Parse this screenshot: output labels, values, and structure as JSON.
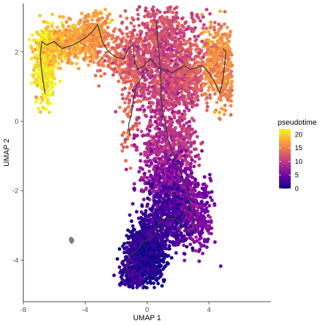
{
  "chart_data": {
    "type": "scatter",
    "title": "",
    "xlabel": "UMAP 1",
    "ylabel": "UMAP 2",
    "xlim": [
      -8,
      8
    ],
    "ylim": [
      -5.2,
      3.4
    ],
    "x_ticks": [
      -8,
      -4,
      0,
      4
    ],
    "x_tick_labels": [
      "-8",
      "-4",
      "0",
      "4"
    ],
    "y_ticks": [
      -4,
      -2,
      0,
      2
    ],
    "y_tick_labels": [
      "-4",
      "-2",
      "0",
      "2"
    ],
    "grid": false,
    "legend": {
      "title": "pseudotime",
      "placement": "right",
      "min": 0,
      "max": 22,
      "ticks": [
        0,
        5,
        10,
        15,
        20
      ],
      "tick_labels": [
        "0",
        "5",
        "10",
        "15",
        "20"
      ],
      "colormap": [
        "#0d0887",
        "#6a00a8",
        "#b12a90",
        "#e16462",
        "#fca636",
        "#f0f921"
      ]
    },
    "clusters": [
      {
        "cx": -6.6,
        "cy": 1.55,
        "sx": 0.35,
        "sy": 0.55,
        "n": 300,
        "t": 21
      },
      {
        "cx": -6.1,
        "cy": 2.15,
        "sx": 0.55,
        "sy": 0.3,
        "n": 250,
        "t": 19.5
      },
      {
        "cx": -4.6,
        "cy": 2.35,
        "sx": 0.75,
        "sy": 0.3,
        "n": 260,
        "t": 17.5
      },
      {
        "cx": -3.3,
        "cy": 2.55,
        "sx": 0.45,
        "sy": 0.35,
        "n": 220,
        "t": 16.5
      },
      {
        "cx": -2.0,
        "cy": 1.9,
        "sx": 0.7,
        "sy": 0.4,
        "n": 120,
        "t": 14.5
      },
      {
        "cx": -0.8,
        "cy": 1.6,
        "sx": 0.45,
        "sy": 0.5,
        "n": 160,
        "t": 13
      },
      {
        "cx": -1.1,
        "cy": 0.1,
        "sx": 0.35,
        "sy": 0.5,
        "n": 50,
        "t": 14
      },
      {
        "cx": 1.0,
        "cy": 2.3,
        "sx": 1.2,
        "sy": 0.65,
        "n": 620,
        "t": 11.5
      },
      {
        "cx": 1.2,
        "cy": 1.1,
        "sx": 1.0,
        "sy": 0.55,
        "n": 480,
        "t": 10.5
      },
      {
        "cx": 2.6,
        "cy": 1.4,
        "sx": 0.7,
        "sy": 0.45,
        "n": 220,
        "t": 12.5
      },
      {
        "cx": 4.6,
        "cy": 1.75,
        "sx": 0.55,
        "sy": 0.55,
        "n": 380,
        "t": 16
      },
      {
        "cx": 5.2,
        "cy": 0.9,
        "sx": 0.3,
        "sy": 0.35,
        "n": 60,
        "t": 15.5
      },
      {
        "cx": 1.0,
        "cy": -0.7,
        "sx": 0.75,
        "sy": 0.55,
        "n": 380,
        "t": 9
      },
      {
        "cx": 2.4,
        "cy": -0.6,
        "sx": 0.45,
        "sy": 0.5,
        "n": 150,
        "t": 10
      },
      {
        "cx": 1.4,
        "cy": -1.8,
        "sx": 0.8,
        "sy": 0.45,
        "n": 380,
        "t": 6
      },
      {
        "cx": 3.0,
        "cy": -2.6,
        "sx": 0.65,
        "sy": 0.55,
        "n": 380,
        "t": 5.5
      },
      {
        "cx": 1.2,
        "cy": -2.8,
        "sx": 0.75,
        "sy": 0.45,
        "n": 420,
        "t": 2.5
      },
      {
        "cx": 0.0,
        "cy": -3.4,
        "sx": 0.5,
        "sy": 0.3,
        "n": 200,
        "t": 2
      },
      {
        "cx": -0.6,
        "cy": -3.9,
        "sx": 0.5,
        "sy": 0.4,
        "n": 300,
        "t": 1.5
      },
      {
        "cx": 0.2,
        "cy": -4.2,
        "sx": 0.45,
        "sy": 0.35,
        "n": 260,
        "t": 0.6
      },
      {
        "cx": -1.0,
        "cy": -4.4,
        "sx": 0.4,
        "sy": 0.25,
        "n": 150,
        "t": 1.5
      }
    ],
    "gray_points": [
      [
        -4.9,
        -3.45
      ],
      [
        -4.85,
        -3.4
      ],
      [
        -4.95,
        -3.42
      ],
      [
        -4.88,
        -3.48
      ],
      [
        -4.82,
        -3.44
      ],
      [
        -4.92,
        -3.38
      ]
    ],
    "trajectory": [
      [
        [
          -6.6,
          0.8
        ],
        [
          -6.8,
          1.4
        ],
        [
          -6.9,
          1.9
        ],
        [
          -6.8,
          2.3
        ],
        [
          -6.5,
          2.2
        ],
        [
          -6.0,
          2.3
        ],
        [
          -5.5,
          2.1
        ],
        [
          -4.8,
          2.2
        ],
        [
          -4.0,
          2.4
        ],
        [
          -3.5,
          2.6
        ],
        [
          -3.2,
          2.8
        ],
        [
          -2.9,
          2.3
        ],
        [
          -2.5,
          2.0
        ],
        [
          -2.0,
          1.85
        ],
        [
          -1.5,
          1.8
        ],
        [
          -1.2,
          2.1
        ],
        [
          -0.9,
          2.2
        ],
        [
          -0.8,
          1.7
        ],
        [
          -0.6,
          1.5
        ],
        [
          -0.2,
          1.6
        ],
        [
          0.2,
          1.8
        ],
        [
          0.6,
          1.6
        ],
        [
          1.0,
          1.5
        ],
        [
          1.6,
          1.4
        ],
        [
          2.0,
          1.5
        ],
        [
          2.4,
          1.6
        ],
        [
          2.8,
          1.5
        ],
        [
          3.2,
          1.55
        ],
        [
          3.6,
          1.6
        ],
        [
          4.0,
          1.4
        ],
        [
          4.3,
          1.2
        ],
        [
          4.5,
          1.0
        ],
        [
          4.7,
          0.8
        ],
        [
          4.9,
          1.2
        ],
        [
          5.0,
          1.6
        ],
        [
          5.1,
          2.0
        ],
        [
          4.9,
          2.1
        ]
      ],
      [
        [
          -1.1,
          -0.4
        ],
        [
          -1.2,
          -0.1
        ],
        [
          -1.0,
          0.2
        ],
        [
          -0.9,
          0.6
        ],
        [
          -0.7,
          1.0
        ],
        [
          -0.3,
          1.3
        ],
        [
          0.1,
          1.5
        ]
      ],
      [
        [
          0.6,
          2.9
        ],
        [
          0.7,
          2.3
        ],
        [
          0.8,
          1.8
        ],
        [
          0.9,
          1.2
        ],
        [
          0.9,
          0.7
        ],
        [
          1.0,
          0.3
        ],
        [
          1.2,
          -0.1
        ],
        [
          1.4,
          -0.6
        ],
        [
          1.8,
          -1.1
        ],
        [
          2.3,
          -1.6
        ],
        [
          2.6,
          -2.0
        ],
        [
          2.8,
          -2.4
        ],
        [
          3.0,
          -2.8
        ],
        [
          3.1,
          -3.1
        ],
        [
          2.7,
          -3.2
        ],
        [
          2.3,
          -3.0
        ],
        [
          1.8,
          -2.8
        ],
        [
          1.2,
          -2.8
        ],
        [
          0.8,
          -2.9
        ],
        [
          0.5,
          -3.3
        ],
        [
          0.1,
          -3.4
        ],
        [
          -0.3,
          -3.5
        ],
        [
          -0.6,
          -3.7
        ],
        [
          -0.9,
          -3.8
        ],
        [
          -1.2,
          -3.9
        ],
        [
          -1.3,
          -4.2
        ],
        [
          -1.2,
          -4.5
        ]
      ],
      [
        [
          2.8,
          -2.4
        ],
        [
          2.5,
          -2.6
        ],
        [
          2.2,
          -2.8
        ]
      ]
    ]
  }
}
